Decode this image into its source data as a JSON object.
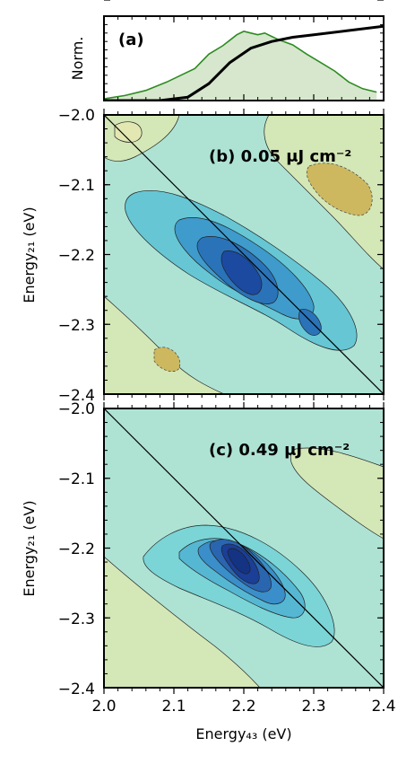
{
  "chart_data": [
    {
      "type": "line",
      "panel_label": "(a)",
      "ylabel": "Norm.",
      "xlim": [
        2.0,
        2.4
      ],
      "series": [
        {
          "color": "#000000",
          "x": [
            2.0,
            2.08,
            2.12,
            2.15,
            2.18,
            2.21,
            2.24,
            2.27,
            2.3,
            2.35,
            2.4
          ],
          "values": [
            0.0,
            0.0,
            0.04,
            0.2,
            0.45,
            0.62,
            0.7,
            0.75,
            0.78,
            0.83,
            0.88
          ]
        },
        {
          "color": "#2e8b22",
          "fill": "#cfe3c4",
          "x": [
            2.0,
            2.03,
            2.06,
            2.09,
            2.11,
            2.13,
            2.15,
            2.17,
            2.19,
            2.2,
            2.21,
            2.22,
            2.23,
            2.24,
            2.25,
            2.27,
            2.29,
            2.31,
            2.33,
            2.35,
            2.37,
            2.39
          ],
          "values": [
            0.02,
            0.06,
            0.12,
            0.22,
            0.3,
            0.38,
            0.55,
            0.65,
            0.78,
            0.82,
            0.8,
            0.78,
            0.8,
            0.76,
            0.72,
            0.66,
            0.55,
            0.45,
            0.35,
            0.22,
            0.14,
            0.1
          ]
        }
      ]
    },
    {
      "type": "heatmap",
      "panel_label": "(b) 0.05 μJ cm⁻²",
      "ylabel": "Energy₂₁ (eV)",
      "xlim": [
        2.0,
        2.4
      ],
      "ylim": [
        -2.4,
        -2.0
      ],
      "y_ticks": [
        "−2.0",
        "−2.1",
        "−2.2",
        "−2.3",
        "−2.4"
      ],
      "diagonal": true
    },
    {
      "type": "heatmap",
      "panel_label": "(c) 0.49 μJ cm⁻²",
      "xlabel": "Energy₄₃ (eV)",
      "ylabel": "Energy₂₁ (eV)",
      "xlim": [
        2.0,
        2.4
      ],
      "ylim": [
        -2.4,
        -2.0
      ],
      "x_ticks": [
        "2.0",
        "2.1",
        "2.2",
        "2.3",
        "2.4"
      ],
      "y_ticks": [
        "−2.0",
        "−2.1",
        "−2.2",
        "−2.3",
        "−2.4"
      ],
      "diagonal": true
    }
  ]
}
